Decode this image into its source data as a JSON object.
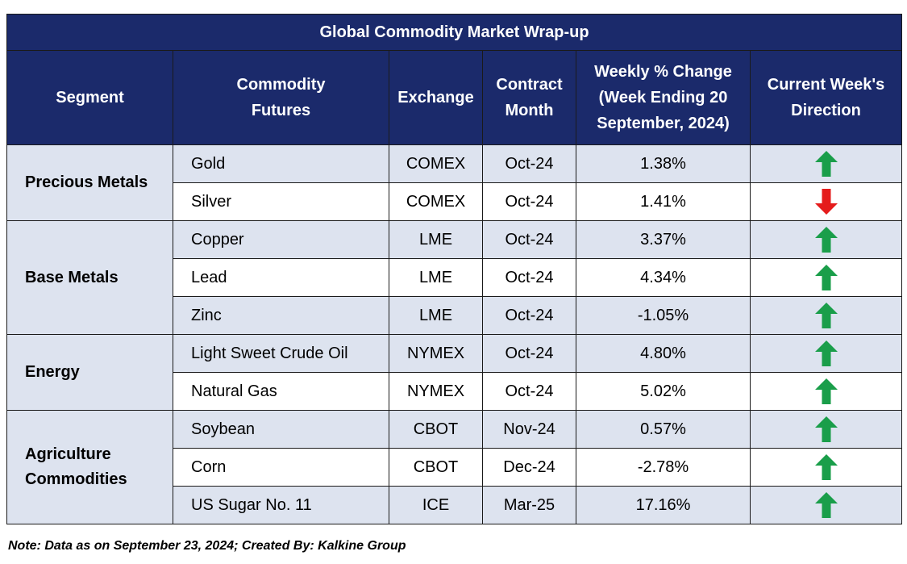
{
  "title": "Global Commodity Market Wrap-up",
  "headers": {
    "segment": "Segment",
    "commodity": "Commodity\nFutures",
    "exchange": "Exchange",
    "contract": "Contract\nMonth",
    "weekly": "Weekly % Change\n(Week Ending 20\nSeptember, 2024)",
    "direction": "Current Week's\nDirection"
  },
  "colors": {
    "header_bg": "#1b2a6b",
    "band_bg": "#dde3ef",
    "up_arrow": "#1a9e4a",
    "down_arrow": "#e51c1c"
  },
  "segments": [
    {
      "name": "Precious Metals",
      "rows": [
        {
          "commodity": "Gold",
          "exchange": "COMEX",
          "month": "Oct-24",
          "change": "1.38%",
          "direction": "up"
        },
        {
          "commodity": "Silver",
          "exchange": "COMEX",
          "month": "Oct-24",
          "change": "1.41%",
          "direction": "down"
        }
      ]
    },
    {
      "name": "Base Metals",
      "rows": [
        {
          "commodity": "Copper",
          "exchange": "LME",
          "month": "Oct-24",
          "change": "3.37%",
          "direction": "up"
        },
        {
          "commodity": "Lead",
          "exchange": "LME",
          "month": "Oct-24",
          "change": "4.34%",
          "direction": "up"
        },
        {
          "commodity": "Zinc",
          "exchange": "LME",
          "month": "Oct-24",
          "change": "-1.05%",
          "direction": "up"
        }
      ]
    },
    {
      "name": "Energy",
      "rows": [
        {
          "commodity": "Light Sweet Crude Oil",
          "exchange": "NYMEX",
          "month": "Oct-24",
          "change": "4.80%",
          "direction": "up"
        },
        {
          "commodity": "Natural Gas",
          "exchange": "NYMEX",
          "month": "Oct-24",
          "change": "5.02%",
          "direction": "up"
        }
      ]
    },
    {
      "name": "Agriculture\nCommodities",
      "rows": [
        {
          "commodity": "Soybean",
          "exchange": "CBOT",
          "month": "Nov-24",
          "change": "0.57%",
          "direction": "up"
        },
        {
          "commodity": "Corn",
          "exchange": "CBOT",
          "month": "Dec-24",
          "change": "-2.78%",
          "direction": "up"
        },
        {
          "commodity": "US Sugar No. 11",
          "exchange": "ICE",
          "month": "Mar-25",
          "change": "17.16%",
          "direction": "up"
        }
      ]
    }
  ],
  "note": "Note: Data as on September 23, 2024; Created By: Kalkine Group"
}
